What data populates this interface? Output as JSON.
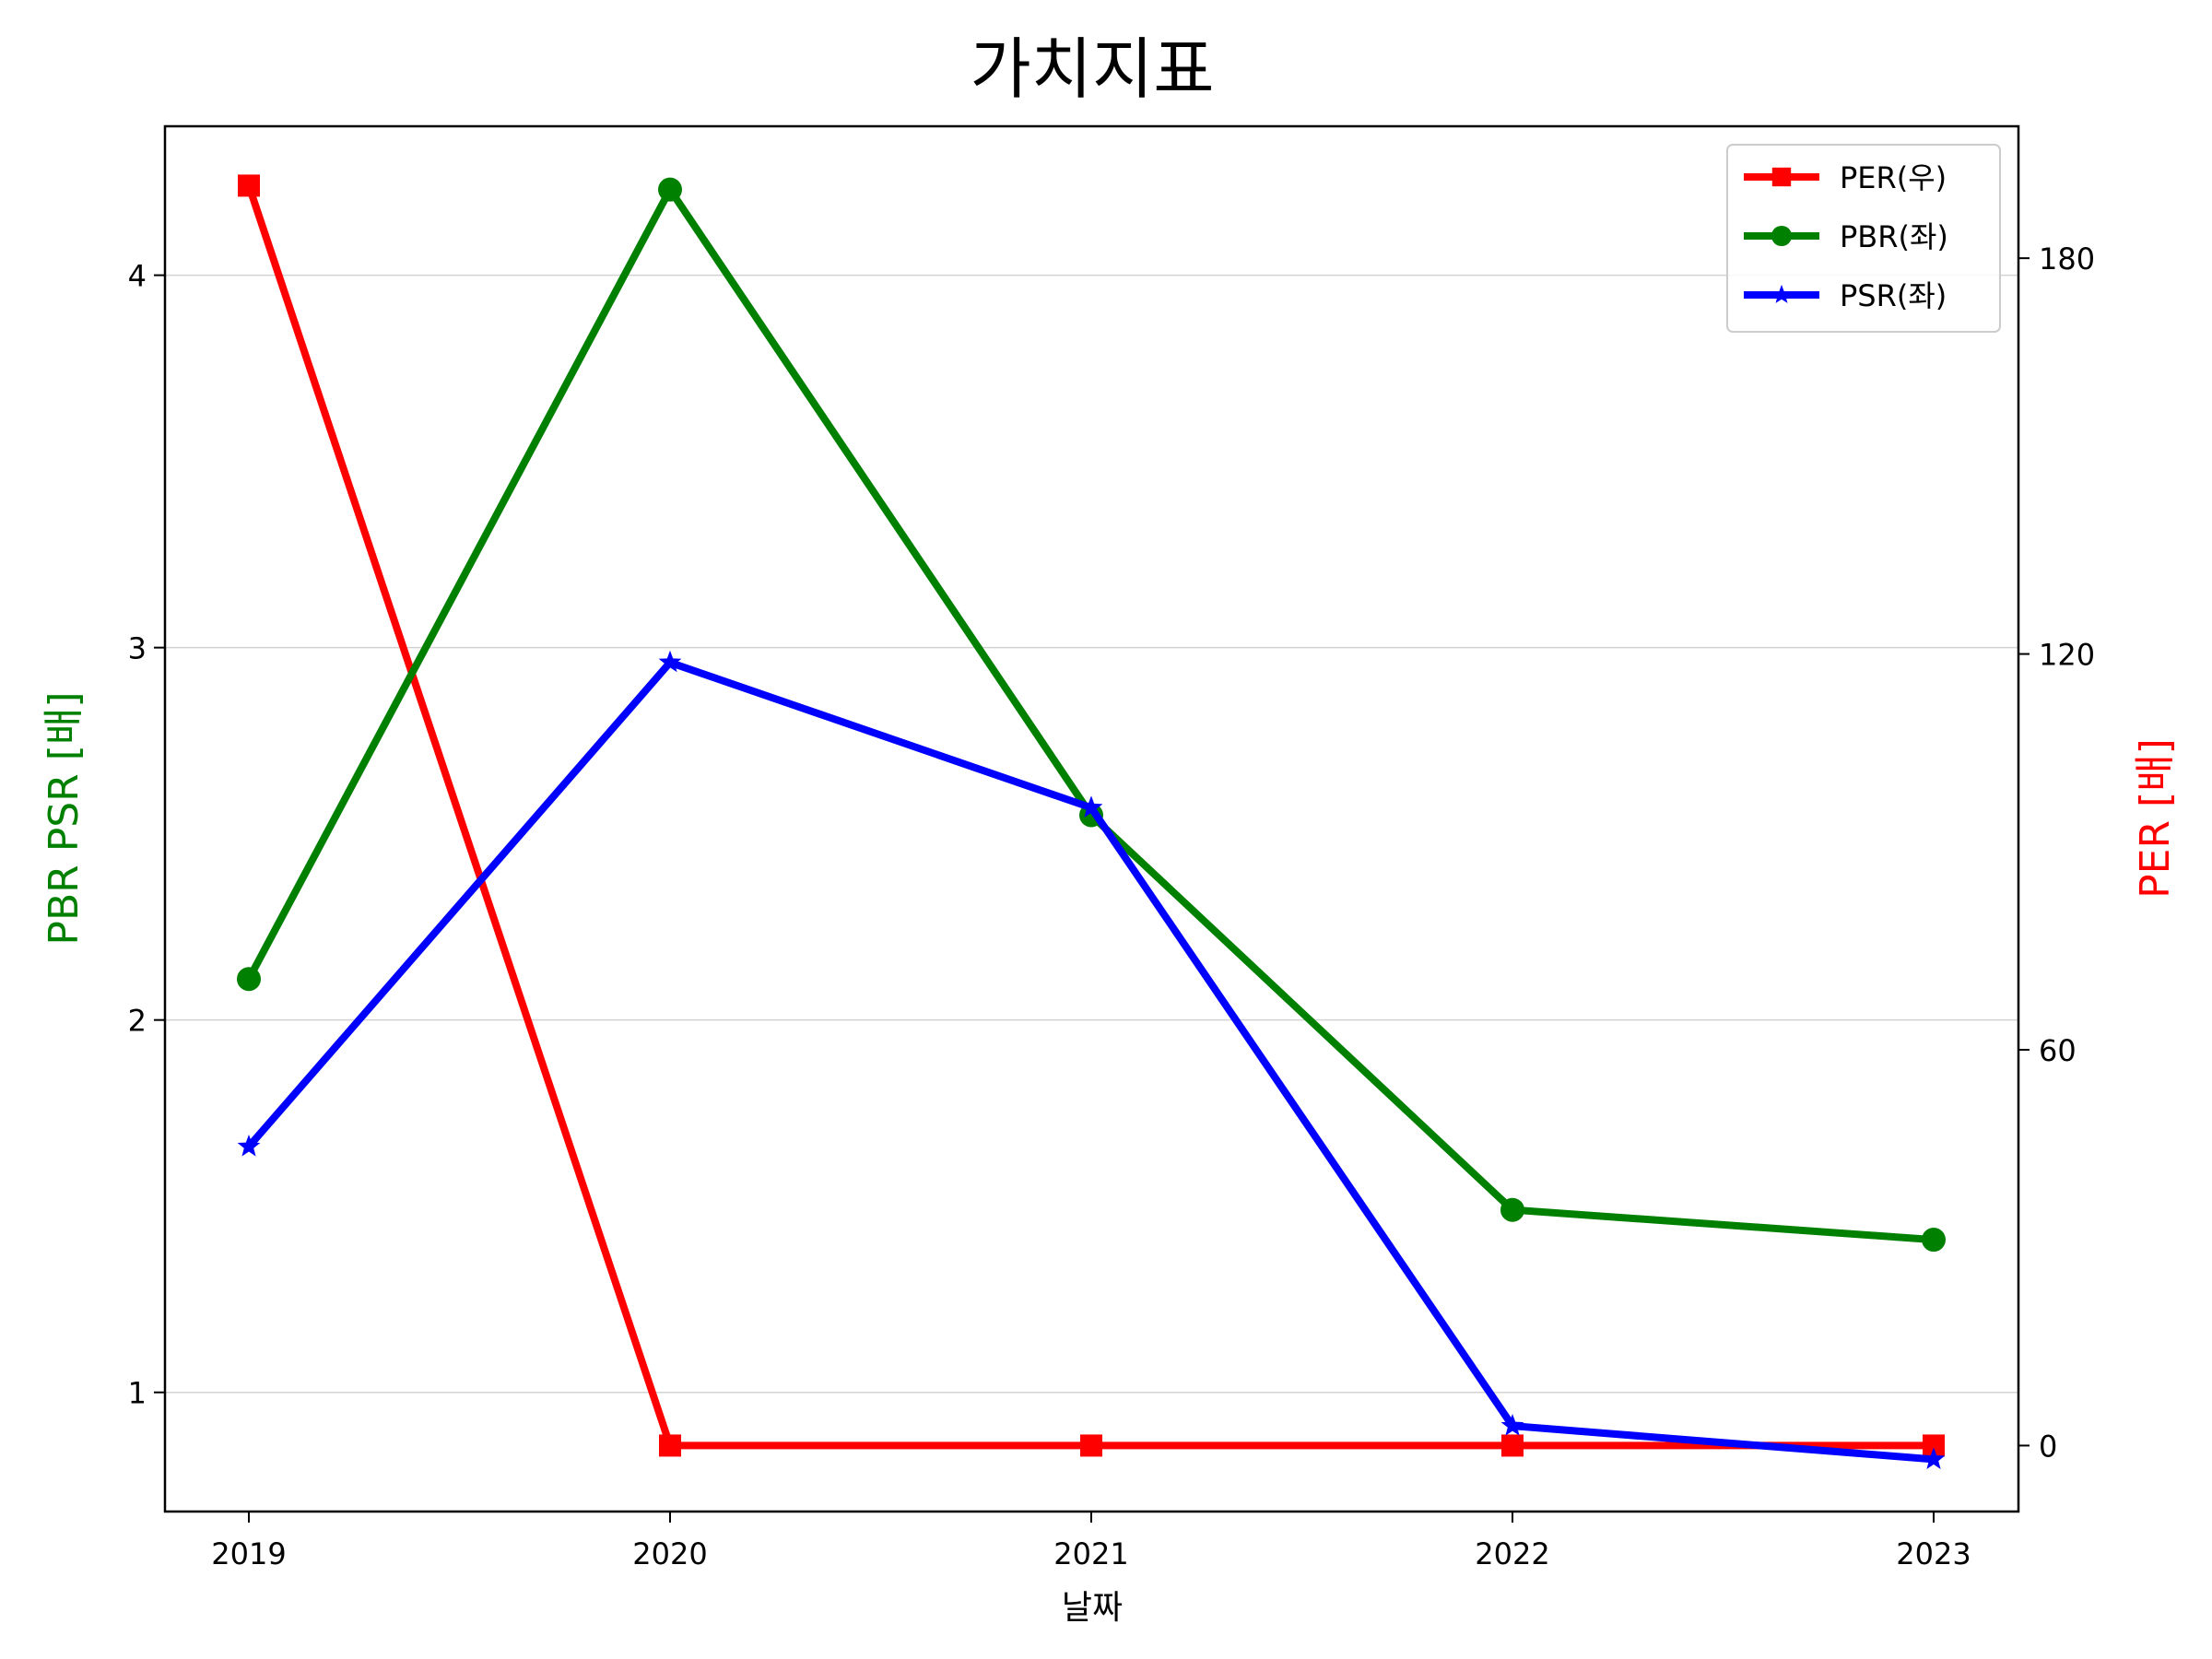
{
  "chart_data": {
    "type": "line",
    "title": "가치지표",
    "xlabel": "날짜",
    "ylabel_left": "PBR PSR [배]",
    "ylabel_right": "PER [배]",
    "x": [
      "2019",
      "2020",
      "2021",
      "2022",
      "2023"
    ],
    "ylim_left": [
      0.68,
      4.4
    ],
    "ylim_right": [
      -10,
      200
    ],
    "yticks_left": [
      "1",
      "2",
      "3",
      "4"
    ],
    "yticks_right": [
      "0",
      "60",
      "120",
      "180"
    ],
    "grid": "horizontal (left axis)",
    "legend_position": "top-right",
    "colors": {
      "ylabel_left": "#008000",
      "ylabel_right": "#ff0000"
    },
    "series": [
      {
        "name": "PER(우)",
        "axis": "right",
        "color": "#ff0000",
        "marker": "square",
        "values": [
          191,
          0,
          0,
          0,
          0
        ]
      },
      {
        "name": "PBR(좌)",
        "axis": "left",
        "color": "#008000",
        "marker": "circle",
        "values": [
          2.11,
          4.23,
          2.55,
          1.49,
          1.41
        ]
      },
      {
        "name": "PSR(좌)",
        "axis": "left",
        "color": "#0000ff",
        "marker": "star",
        "values": [
          1.66,
          2.96,
          2.57,
          0.91,
          0.82
        ]
      }
    ]
  }
}
